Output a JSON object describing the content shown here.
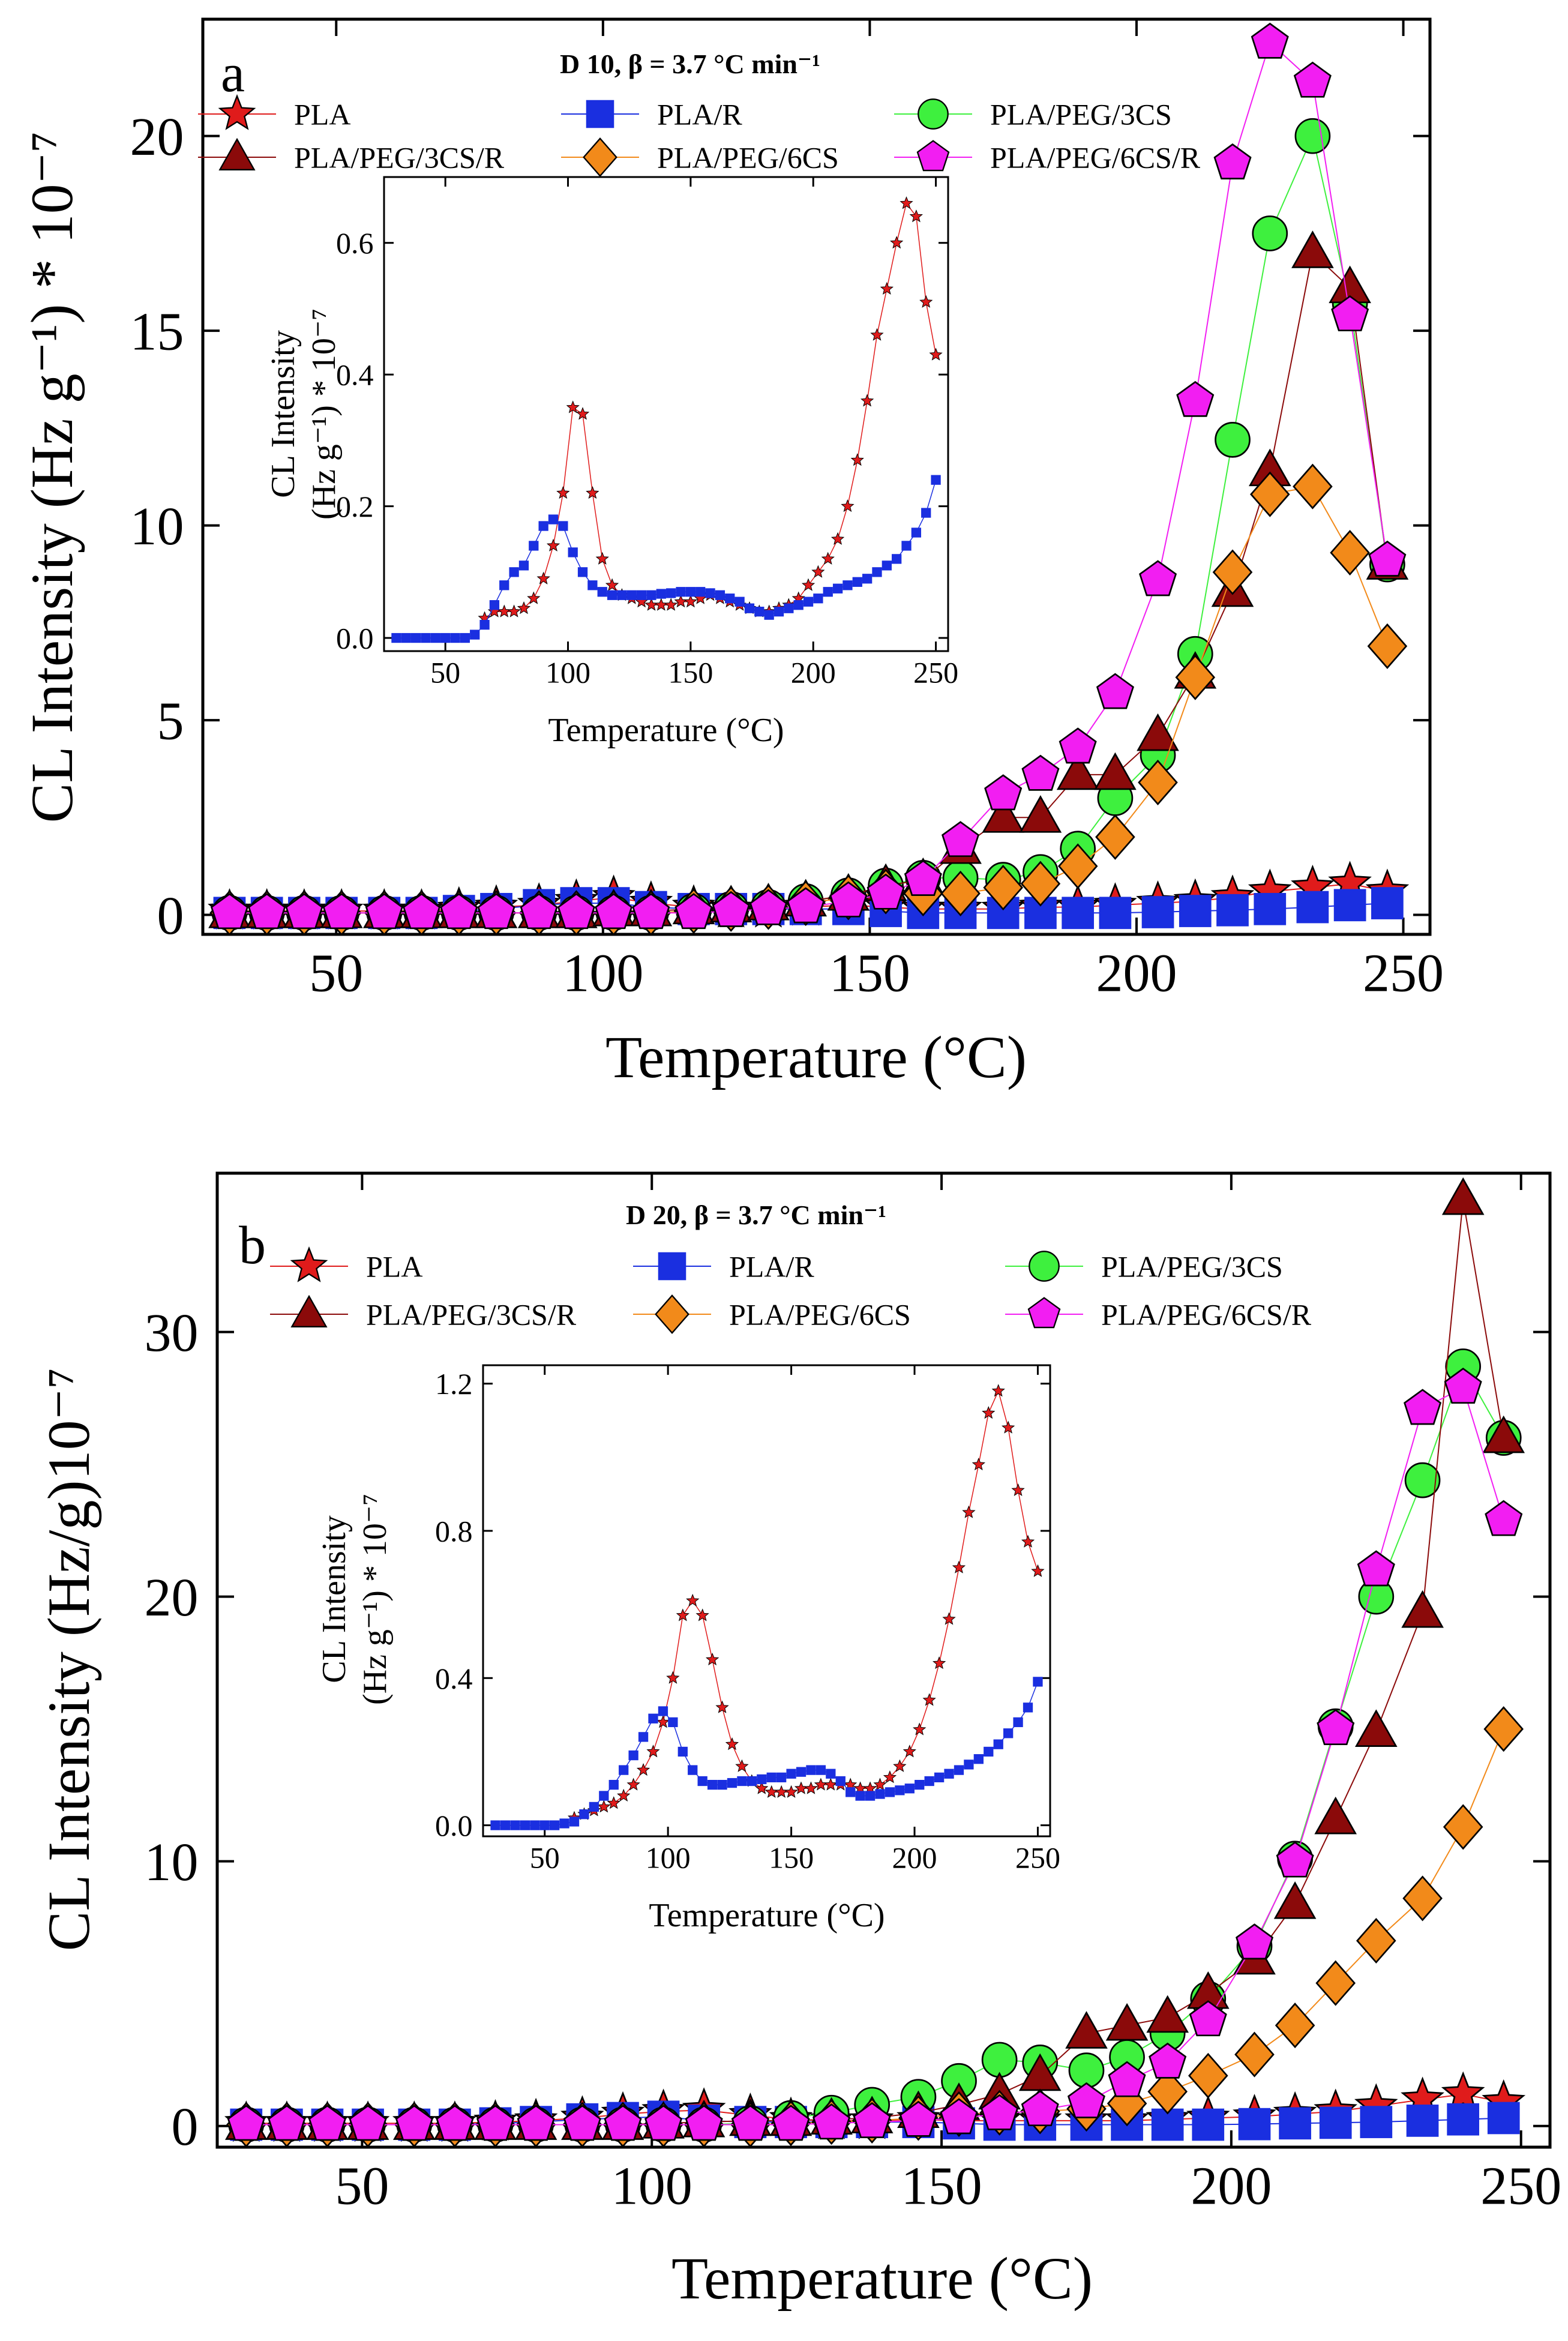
{
  "chart_data": [
    {
      "type": "scatter",
      "panel_label": "a",
      "title": "D 10, β = 3.7 °C min⁻¹",
      "xlabel": "Temperature (°C)",
      "ylabel": "CL Intensity (Hz g⁻¹) * 10⁻⁷",
      "xlim": [
        25,
        255
      ],
      "ylim": [
        -0.5,
        23
      ],
      "xticks": [
        50,
        100,
        150,
        200,
        250
      ],
      "yticks": [
        0,
        5,
        10,
        15,
        20
      ],
      "x": [
        30,
        37,
        44,
        51,
        59,
        66,
        73,
        80,
        88,
        95,
        102,
        109,
        117,
        124,
        131,
        138,
        146,
        153,
        160,
        167,
        175,
        182,
        189,
        196,
        204,
        211,
        218,
        225,
        233,
        240,
        247
      ],
      "series": [
        {
          "name": "PLA",
          "marker": "star",
          "color": "#e01b1b",
          "values": [
            0.1,
            0.1,
            0.1,
            0.1,
            0.1,
            0.1,
            0.15,
            0.2,
            0.25,
            0.35,
            0.45,
            0.3,
            0.2,
            0.15,
            0.15,
            0.2,
            0.25,
            0.2,
            0.15,
            0.15,
            0.15,
            0.2,
            0.2,
            0.25,
            0.3,
            0.35,
            0.45,
            0.6,
            0.7,
            0.8,
            0.6
          ]
        },
        {
          "name": "PLA/R",
          "marker": "square",
          "color": "#1a2fe0",
          "values": [
            0.05,
            0.05,
            0.05,
            0.05,
            0.05,
            0.05,
            0.1,
            0.15,
            0.25,
            0.3,
            0.3,
            0.2,
            0.15,
            0.15,
            0.15,
            0.15,
            0.15,
            0.1,
            0.05,
            0.05,
            0.05,
            0.05,
            0.05,
            0.05,
            0.07,
            0.1,
            0.12,
            0.15,
            0.2,
            0.25,
            0.3
          ]
        },
        {
          "name": "PLA/PEG/3CS",
          "marker": "circle",
          "color": "#3ef03e",
          "values": [
            0.05,
            0.05,
            0.05,
            0.05,
            0.05,
            0.05,
            0.05,
            0.05,
            0.05,
            0.05,
            0.05,
            0.05,
            0.1,
            0.15,
            0.2,
            0.35,
            0.5,
            0.75,
            0.95,
            0.95,
            0.9,
            1.1,
            1.7,
            3.0,
            4.1,
            6.7,
            12.2,
            17.5,
            20.0,
            15.7,
            9.0
          ]
        },
        {
          "name": "PLA/PEG/3CS/R",
          "marker": "triangle",
          "color": "#8b0a0a",
          "values": [
            0.05,
            0.05,
            0.05,
            0.05,
            0.05,
            0.05,
            0.05,
            0.05,
            0.05,
            0.05,
            0.1,
            0.1,
            0.15,
            0.2,
            0.25,
            0.35,
            0.5,
            0.75,
            0.9,
            1.7,
            2.5,
            2.5,
            3.6,
            3.6,
            4.6,
            6.2,
            8.3,
            11.4,
            17.0,
            16.1,
            9.0
          ]
        },
        {
          "name": "PLA/PEG/6CS",
          "marker": "diamond",
          "color": "#f28a1a",
          "values": [
            0.05,
            0.05,
            0.05,
            0.05,
            0.05,
            0.05,
            0.05,
            0.05,
            0.05,
            0.05,
            0.05,
            0.05,
            0.1,
            0.15,
            0.2,
            0.3,
            0.45,
            0.6,
            0.55,
            0.55,
            0.7,
            0.8,
            1.25,
            2.0,
            3.4,
            6.1,
            8.8,
            10.8,
            11.0,
            9.3,
            6.9
          ]
        },
        {
          "name": "PLA/PEG/6CS/R",
          "marker": "pentagon",
          "color": "#f21ef2",
          "values": [
            0.05,
            0.05,
            0.05,
            0.05,
            0.05,
            0.05,
            0.05,
            0.05,
            0.05,
            0.05,
            0.05,
            0.05,
            0.05,
            0.1,
            0.15,
            0.2,
            0.35,
            0.55,
            0.9,
            1.9,
            3.1,
            3.6,
            4.3,
            5.7,
            8.6,
            13.2,
            19.3,
            22.4,
            21.4,
            15.4,
            9.1
          ]
        }
      ],
      "inset": {
        "xlabel": "Temperature (°C)",
        "ylabel_line1": "CL Intensity",
        "ylabel_line2": "(Hz g⁻¹) * 10⁻⁷",
        "xlim": [
          25,
          255
        ],
        "ylim": [
          -0.02,
          0.7
        ],
        "xticks": [
          50,
          100,
          150,
          200,
          250
        ],
        "yticks": [
          0.0,
          0.2,
          0.4,
          0.6
        ],
        "series": [
          {
            "name": "PLA",
            "marker": "star",
            "color": "#e01b1b",
            "x": [
              66,
              70,
              74,
              78,
              82,
              86,
              90,
              94,
              98,
              102,
              106,
              110,
              114,
              118,
              122,
              126,
              130,
              134,
              138,
              142,
              146,
              150,
              154,
              158,
              162,
              166,
              170,
              174,
              178,
              182,
              186,
              190,
              194,
              198,
              202,
              206,
              210,
              214,
              218,
              222,
              226,
              230,
              234,
              238,
              242,
              246,
              250
            ],
            "values": [
              0.03,
              0.04,
              0.04,
              0.04,
              0.045,
              0.06,
              0.09,
              0.14,
              0.22,
              0.35,
              0.34,
              0.22,
              0.12,
              0.08,
              0.065,
              0.06,
              0.055,
              0.05,
              0.05,
              0.05,
              0.055,
              0.055,
              0.06,
              0.065,
              0.06,
              0.055,
              0.05,
              0.045,
              0.04,
              0.04,
              0.045,
              0.05,
              0.06,
              0.08,
              0.1,
              0.12,
              0.15,
              0.2,
              0.27,
              0.36,
              0.46,
              0.53,
              0.6,
              0.66,
              0.64,
              0.51,
              0.43
            ]
          },
          {
            "name": "PLA/R",
            "marker": "square",
            "color": "#1a2fe0",
            "x": [
              30,
              34,
              38,
              42,
              46,
              50,
              54,
              58,
              62,
              66,
              70,
              74,
              78,
              82,
              86,
              90,
              94,
              98,
              102,
              106,
              110,
              114,
              118,
              122,
              126,
              130,
              134,
              138,
              142,
              146,
              150,
              154,
              158,
              162,
              166,
              170,
              174,
              178,
              182,
              186,
              190,
              194,
              198,
              202,
              206,
              210,
              214,
              218,
              222,
              226,
              230,
              234,
              238,
              242,
              246,
              250
            ],
            "values": [
              0,
              0,
              0,
              0,
              0,
              0,
              0,
              0,
              0.005,
              0.02,
              0.05,
              0.08,
              0.1,
              0.11,
              0.14,
              0.17,
              0.18,
              0.17,
              0.13,
              0.1,
              0.08,
              0.07,
              0.065,
              0.065,
              0.065,
              0.065,
              0.065,
              0.067,
              0.068,
              0.07,
              0.07,
              0.07,
              0.068,
              0.065,
              0.06,
              0.055,
              0.045,
              0.04,
              0.035,
              0.04,
              0.045,
              0.05,
              0.055,
              0.06,
              0.07,
              0.075,
              0.08,
              0.085,
              0.09,
              0.1,
              0.11,
              0.12,
              0.14,
              0.16,
              0.19,
              0.24
            ]
          }
        ]
      }
    },
    {
      "type": "scatter",
      "panel_label": "b",
      "title": "D 20, β = 3.7 °C min⁻¹",
      "xlabel": "Temperature (°C)",
      "ylabel": "CL Intensity (Hz/g)10⁻⁷",
      "xlim": [
        25,
        255
      ],
      "ylim": [
        -0.8,
        36
      ],
      "xticks": [
        50,
        100,
        150,
        200,
        250
      ],
      "yticks": [
        0,
        10,
        20,
        30
      ],
      "x": [
        30,
        37,
        44,
        51,
        59,
        66,
        73,
        80,
        88,
        95,
        102,
        109,
        117,
        124,
        131,
        138,
        146,
        153,
        160,
        167,
        175,
        182,
        189,
        196,
        204,
        211,
        218,
        225,
        233,
        240,
        247
      ],
      "series": [
        {
          "name": "PLA",
          "marker": "star",
          "color": "#e01b1b",
          "values": [
            0.1,
            0.1,
            0.1,
            0.1,
            0.1,
            0.1,
            0.15,
            0.2,
            0.3,
            0.45,
            0.55,
            0.6,
            0.4,
            0.25,
            0.2,
            0.2,
            0.25,
            0.2,
            0.2,
            0.2,
            0.2,
            0.2,
            0.25,
            0.3,
            0.35,
            0.45,
            0.55,
            0.75,
            1.0,
            1.2,
            0.9
          ]
        },
        {
          "name": "PLA/R",
          "marker": "square",
          "color": "#1a2fe0",
          "values": [
            0.05,
            0.05,
            0.05,
            0.05,
            0.05,
            0.05,
            0.1,
            0.15,
            0.25,
            0.3,
            0.35,
            0.2,
            0.15,
            0.15,
            0.15,
            0.15,
            0.15,
            0.1,
            0.05,
            0.05,
            0.05,
            0.05,
            0.05,
            0.05,
            0.07,
            0.1,
            0.12,
            0.15,
            0.2,
            0.25,
            0.3
          ]
        },
        {
          "name": "PLA/PEG/3CS",
          "marker": "circle",
          "color": "#3ef03e",
          "values": [
            0.05,
            0.05,
            0.05,
            0.05,
            0.05,
            0.05,
            0.05,
            0.05,
            0.05,
            0.05,
            0.05,
            0.05,
            0.1,
            0.3,
            0.5,
            0.8,
            1.1,
            1.7,
            2.5,
            2.4,
            2.1,
            2.6,
            3.5,
            4.8,
            6.8,
            10.1,
            15.1,
            20.0,
            24.4,
            28.7,
            26.0
          ]
        },
        {
          "name": "PLA/PEG/3CS/R",
          "marker": "triangle",
          "color": "#8b0a0a",
          "values": [
            0.05,
            0.05,
            0.05,
            0.05,
            0.05,
            0.05,
            0.05,
            0.05,
            0.05,
            0.05,
            0.1,
            0.15,
            0.2,
            0.2,
            0.25,
            0.3,
            0.5,
            0.8,
            1.2,
            1.9,
            3.5,
            3.8,
            4.1,
            5.0,
            6.3,
            8.4,
            11.6,
            14.9,
            19.4,
            35.0,
            26.0
          ]
        },
        {
          "name": "PLA/PEG/6CS",
          "marker": "diamond",
          "color": "#f28a1a",
          "values": [
            0.05,
            0.05,
            0.05,
            0.05,
            0.05,
            0.05,
            0.05,
            0.05,
            0.05,
            0.05,
            0.05,
            0.05,
            0.05,
            0.1,
            0.15,
            0.2,
            0.3,
            0.45,
            0.5,
            0.55,
            0.65,
            0.85,
            1.3,
            1.9,
            2.7,
            3.8,
            5.4,
            7.0,
            8.6,
            11.3,
            15.0
          ]
        },
        {
          "name": "PLA/PEG/6CS/R",
          "marker": "pentagon",
          "color": "#f21ef2",
          "values": [
            0.05,
            0.05,
            0.05,
            0.05,
            0.05,
            0.05,
            0.05,
            0.05,
            0.05,
            0.05,
            0.05,
            0.05,
            0.05,
            0.05,
            0.1,
            0.15,
            0.2,
            0.3,
            0.45,
            0.6,
            0.9,
            1.7,
            2.4,
            4.0,
            6.9,
            10.0,
            15.0,
            21.0,
            27.1,
            27.9,
            22.9
          ]
        }
      ],
      "inset": {
        "xlabel": "Temperature (°C)",
        "ylabel_line1": "CL Intensity",
        "ylabel_line2": "(Hz g⁻¹) * 10⁻⁷",
        "xlim": [
          25,
          255
        ],
        "ylim": [
          -0.03,
          1.25
        ],
        "xticks": [
          50,
          100,
          150,
          200,
          250
        ],
        "yticks": [
          0.0,
          0.4,
          0.8,
          1.2
        ],
        "series": [
          {
            "name": "PLA",
            "marker": "star",
            "color": "#e01b1b",
            "x": [
              62,
              66,
              70,
              74,
              78,
              82,
              86,
              90,
              94,
              98,
              102,
              106,
              110,
              114,
              118,
              122,
              126,
              130,
              134,
              138,
              142,
              146,
              150,
              154,
              158,
              162,
              166,
              170,
              174,
              178,
              182,
              186,
              190,
              194,
              198,
              202,
              206,
              210,
              214,
              218,
              222,
              226,
              230,
              234,
              238,
              242,
              246,
              250
            ],
            "values": [
              0.02,
              0.03,
              0.04,
              0.05,
              0.06,
              0.08,
              0.11,
              0.15,
              0.2,
              0.28,
              0.4,
              0.57,
              0.61,
              0.57,
              0.45,
              0.32,
              0.22,
              0.16,
              0.12,
              0.1,
              0.09,
              0.09,
              0.09,
              0.1,
              0.1,
              0.11,
              0.11,
              0.11,
              0.11,
              0.1,
              0.1,
              0.11,
              0.13,
              0.16,
              0.2,
              0.26,
              0.34,
              0.44,
              0.56,
              0.7,
              0.85,
              0.98,
              1.12,
              1.18,
              1.08,
              0.91,
              0.77,
              0.69
            ]
          },
          {
            "name": "PLA/R",
            "marker": "square",
            "color": "#1a2fe0",
            "x": [
              30,
              34,
              38,
              42,
              46,
              50,
              54,
              58,
              62,
              66,
              70,
              74,
              78,
              82,
              86,
              90,
              94,
              98,
              102,
              106,
              110,
              114,
              118,
              122,
              126,
              130,
              134,
              138,
              142,
              146,
              150,
              154,
              158,
              162,
              166,
              170,
              174,
              178,
              182,
              186,
              190,
              194,
              198,
              202,
              206,
              210,
              214,
              218,
              222,
              226,
              230,
              234,
              238,
              242,
              246,
              250
            ],
            "values": [
              0,
              0,
              0,
              0,
              0,
              0,
              0,
              0.005,
              0.01,
              0.03,
              0.05,
              0.08,
              0.11,
              0.15,
              0.19,
              0.24,
              0.29,
              0.31,
              0.28,
              0.2,
              0.15,
              0.12,
              0.11,
              0.11,
              0.115,
              0.12,
              0.12,
              0.125,
              0.13,
              0.13,
              0.14,
              0.145,
              0.15,
              0.15,
              0.14,
              0.12,
              0.09,
              0.08,
              0.08,
              0.085,
              0.09,
              0.095,
              0.1,
              0.11,
              0.12,
              0.13,
              0.14,
              0.15,
              0.165,
              0.18,
              0.2,
              0.22,
              0.25,
              0.28,
              0.32,
              0.39
            ]
          }
        ]
      }
    }
  ]
}
